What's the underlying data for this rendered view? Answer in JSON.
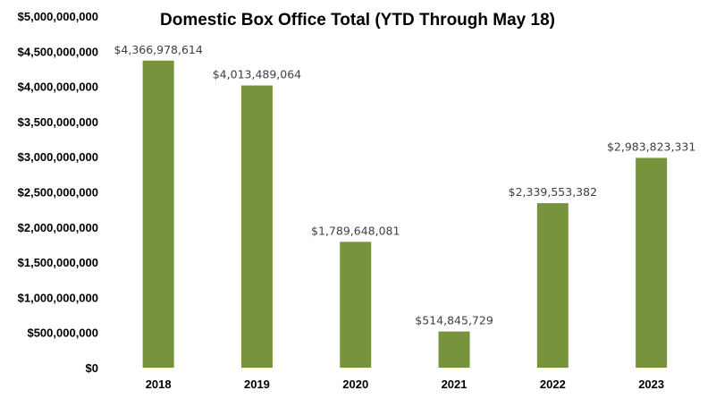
{
  "chart_data": {
    "type": "bar",
    "title": "Domestic Box Office Total (YTD Through May 18)",
    "xlabel": "",
    "ylabel": "",
    "categories": [
      "2018",
      "2019",
      "2020",
      "2021",
      "2022",
      "2023"
    ],
    "values": [
      4366978614,
      4013489064,
      1789648081,
      514845729,
      2339553382,
      2983823331
    ],
    "data_labels": [
      "$4,366,978,614",
      "$4,013,489,064",
      "$1,789,648,081",
      "$514,845,729",
      "$2,339,553,382",
      "$2,983,823,331"
    ],
    "ylim": [
      0,
      5000000000
    ],
    "yticks": [
      0,
      500000000,
      1000000000,
      1500000000,
      2000000000,
      2500000000,
      3000000000,
      3500000000,
      4000000000,
      4500000000,
      5000000000
    ],
    "ytick_labels": [
      "$0",
      "$500,000,000",
      "$1,000,000,000",
      "$1,500,000,000",
      "$2,000,000,000",
      "$2,500,000,000",
      "$3,000,000,000",
      "$3,500,000,000",
      "$4,000,000,000",
      "$4,500,000,000",
      "$5,000,000,000"
    ],
    "grid": false,
    "legend": "none",
    "bar_color": "#77933c"
  }
}
